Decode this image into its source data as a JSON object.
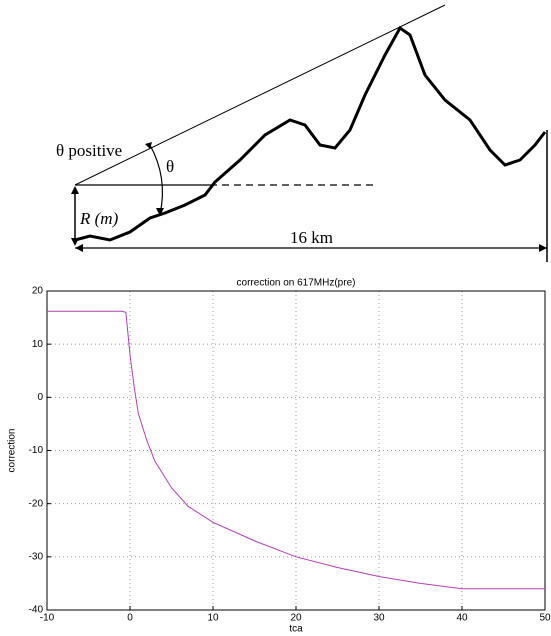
{
  "diagram": {
    "theta_positive": "θ positive",
    "theta": "θ",
    "height": "R (m)",
    "distance": "16 km"
  },
  "chart_data": {
    "type": "line",
    "title": "correction on 617MHz(pre)",
    "x_label": "tca",
    "y_label": "correction",
    "xlim": [
      -10,
      50
    ],
    "ylim": [
      -40,
      20
    ],
    "xticks": [
      -10,
      0,
      10,
      20,
      30,
      40,
      50
    ],
    "yticks": [
      -40,
      -30,
      -20,
      -10,
      0,
      10,
      20
    ],
    "grid": true,
    "x": [
      -10,
      -1,
      -0.5,
      0,
      0.5,
      1,
      2,
      3,
      5,
      7,
      10,
      15,
      20,
      25,
      30,
      35,
      40,
      50
    ],
    "series": [
      {
        "name": "correction",
        "color": "#b040b0",
        "values": [
          16.2,
          16.2,
          16,
          8,
          2,
          -3,
          -8,
          -12,
          -17,
          -20.5,
          -23.5,
          -27,
          -30,
          -32,
          -33.7,
          -35,
          -36,
          -36
        ]
      }
    ]
  }
}
